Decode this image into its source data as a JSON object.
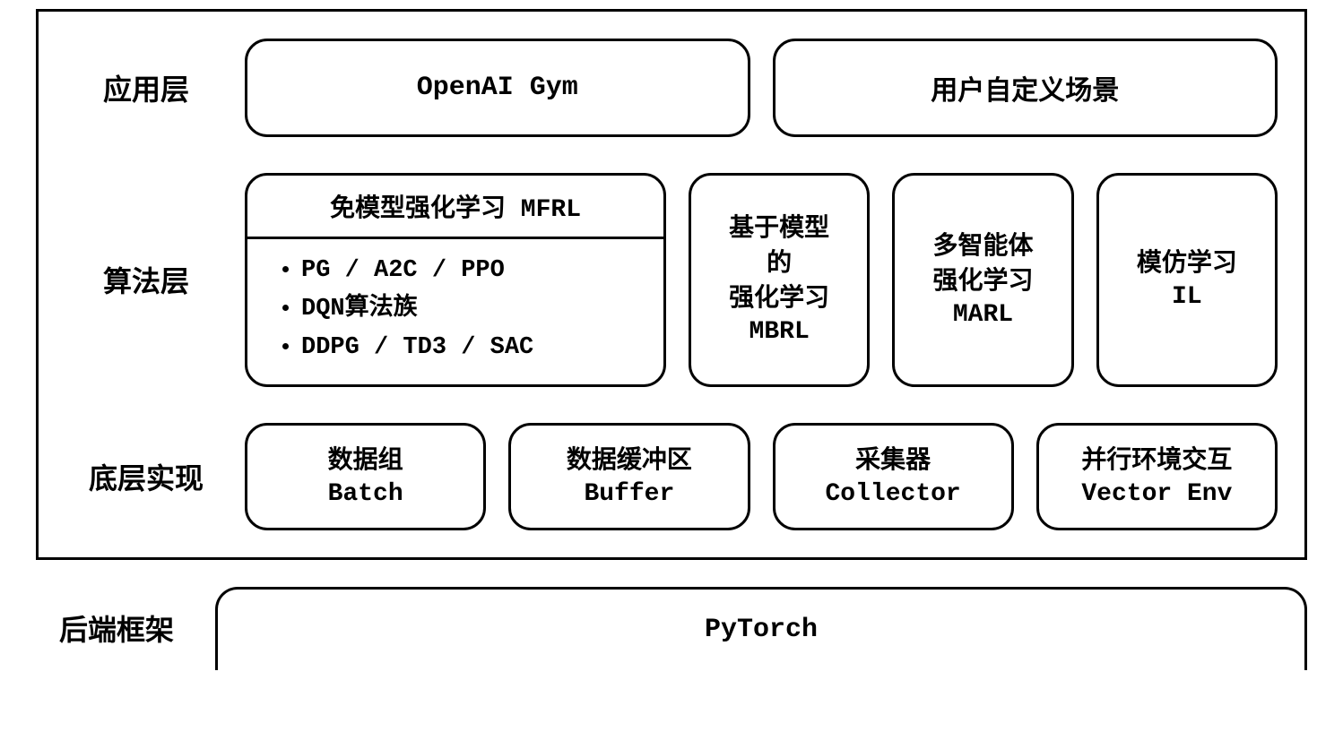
{
  "diagram": {
    "type": "layered-architecture",
    "background_color": "#ffffff",
    "border_color": "#000000",
    "text_color": "#000000",
    "border_width": 3,
    "border_radius": 25,
    "font_family_cn": "SimHei",
    "font_family_en": "Courier New",
    "font_weight": "bold"
  },
  "layers": {
    "application": {
      "label": "应用层",
      "boxes": {
        "b1": "OpenAI Gym",
        "b2": "用户自定义场景"
      }
    },
    "algorithm": {
      "label": "算法层",
      "mfrl": {
        "title": "免模型强化学习 MFRL",
        "items": {
          "i1": "PG / A2C / PPO",
          "i2": "DQN算法族",
          "i3": "DDPG / TD3 / SAC"
        }
      },
      "mbrl": {
        "line1": "基于模型",
        "line2": "的",
        "line3": "强化学习",
        "line4": "MBRL"
      },
      "marl": {
        "line1": "多智能体",
        "line2": "强化学习",
        "line3": "MARL"
      },
      "il": {
        "line1": "模仿学习",
        "line2": "IL"
      }
    },
    "implementation": {
      "label": "底层实现",
      "boxes": {
        "b1": {
          "cn": "数据组",
          "en": "Batch"
        },
        "b2": {
          "cn": "数据缓冲区",
          "en": "Buffer"
        },
        "b3": {
          "cn": "采集器",
          "en": "Collector"
        },
        "b4": {
          "cn": "并行环境交互",
          "en": "Vector Env"
        }
      }
    },
    "backend": {
      "label": "后端框架",
      "box": "PyTorch"
    }
  }
}
